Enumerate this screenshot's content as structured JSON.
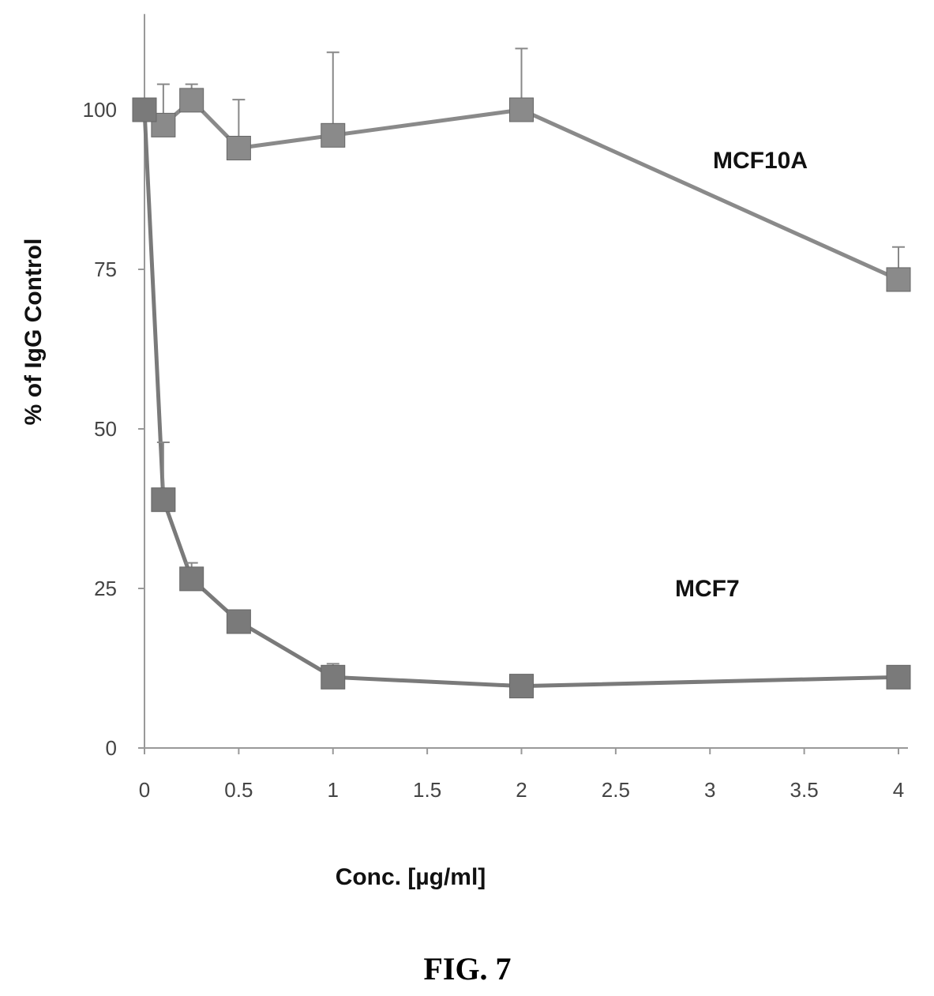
{
  "chart_data": {
    "type": "line",
    "title": "",
    "caption": "FIG. 7",
    "xlabel": "Conc. [µg/ml]",
    "ylabel": "% of IgG Control",
    "xlim": [
      0,
      4
    ],
    "ylim": [
      0,
      115
    ],
    "xticks": [
      "0",
      "0.5",
      "1",
      "1.5",
      "2",
      "2.5",
      "3",
      "3.5",
      "4"
    ],
    "yticks": [
      "0",
      "25",
      "50",
      "75",
      "100"
    ],
    "grid": false,
    "legend": "none",
    "series": [
      {
        "name": "MCF10A",
        "color": "#8a8a8a",
        "x": [
          0,
          0.1,
          0.25,
          0.5,
          1,
          2,
          4
        ],
        "y": [
          100,
          97.6,
          101.5,
          94,
          96,
          100,
          73.4
        ],
        "error_upper": [
          0,
          6.4,
          2.5,
          7.6,
          13,
          9.6,
          5.1
        ]
      },
      {
        "name": "MCF7",
        "color": "#7a7a7a",
        "x": [
          0,
          0.1,
          0.25,
          0.5,
          1,
          2,
          4
        ],
        "y": [
          100,
          38.9,
          26.5,
          19.8,
          11.1,
          9.7,
          11.1
        ],
        "error_upper": [
          0,
          9,
          2.5,
          0,
          2.1,
          0,
          0
        ]
      }
    ]
  }
}
